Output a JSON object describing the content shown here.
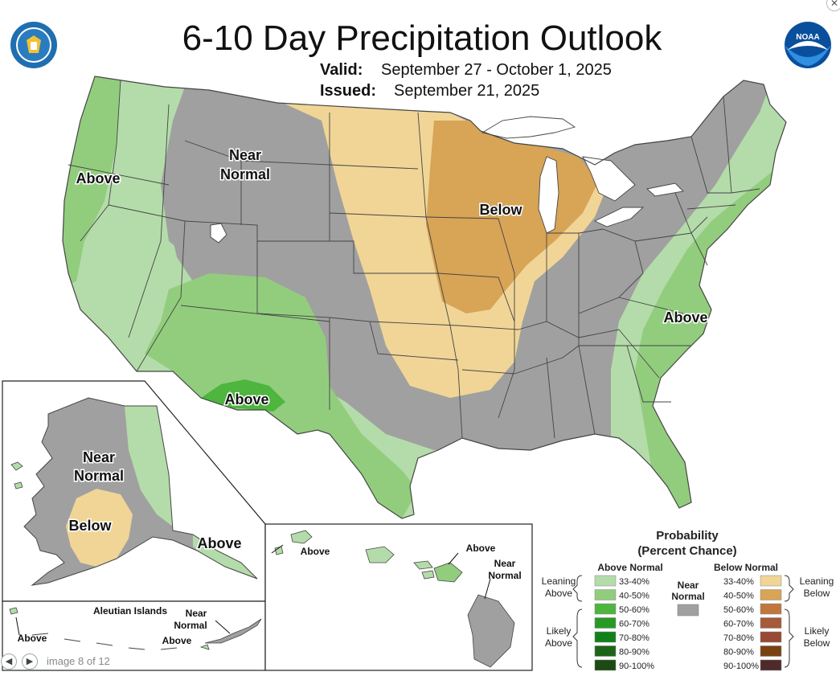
{
  "header": {
    "title": "6-10 Day Precipitation Outlook",
    "valid_label": "Valid:",
    "valid_value": "September 27 - October 1, 2025",
    "issued_label": "Issued:",
    "issued_value": "September 21, 2025"
  },
  "map_labels": {
    "conus_near_normal_1": "Near",
    "conus_near_normal_2": "Normal",
    "conus_above_west": "Above",
    "conus_below": "Below",
    "conus_above_east": "Above",
    "conus_above_southwest": "Above",
    "alaska_near_1": "Near",
    "alaska_near_2": "Normal",
    "alaska_below": "Below",
    "alaska_above": "Above",
    "aleutian_title": "Aleutian Islands",
    "aleutian_above_west": "Above",
    "aleutian_near_1": "Near",
    "aleutian_near_2": "Normal",
    "aleutian_above_east": "Above",
    "hawaii_above_west": "Above",
    "hawaii_above_east": "Above",
    "hawaii_near_1": "Near",
    "hawaii_near_2": "Normal"
  },
  "legend": {
    "title_1": "Probability",
    "title_2": "(Percent Chance)",
    "above_header": "Above Normal",
    "below_header": "Below Normal",
    "near_1": "Near",
    "near_2": "Normal",
    "near_color": "#a0a0a0",
    "leaning_above_1": "Leaning",
    "leaning_above_2": "Above",
    "likely_above_1": "Likely",
    "likely_above_2": "Above",
    "leaning_below_1": "Leaning",
    "leaning_below_2": "Below",
    "likely_below_1": "Likely",
    "likely_below_2": "Below",
    "above_bins": [
      {
        "label": "33-40%",
        "color": "#b4dcaa"
      },
      {
        "label": "40-50%",
        "color": "#92cd7e"
      },
      {
        "label": "50-60%",
        "color": "#4eb53e"
      },
      {
        "label": "60-70%",
        "color": "#279a26"
      },
      {
        "label": "70-80%",
        "color": "#12801a"
      },
      {
        "label": "80-90%",
        "color": "#1e6418"
      },
      {
        "label": "90-100%",
        "color": "#1b4a12"
      }
    ],
    "below_bins": [
      {
        "label": "33-40%",
        "color": "#f0d596"
      },
      {
        "label": "40-50%",
        "color": "#d8a456"
      },
      {
        "label": "50-60%",
        "color": "#c0773e"
      },
      {
        "label": "60-70%",
        "color": "#a55a3a"
      },
      {
        "label": "70-80%",
        "color": "#984a36"
      },
      {
        "label": "80-90%",
        "color": "#7a4212"
      },
      {
        "label": "90-100%",
        "color": "#4e2a2a"
      }
    ]
  },
  "logos": {
    "commerce_icon": "dept-of-commerce-seal",
    "noaa_icon": "noaa-logo",
    "noaa_text": "NOAA"
  },
  "viewer": {
    "counter": "image 8 of 12"
  }
}
